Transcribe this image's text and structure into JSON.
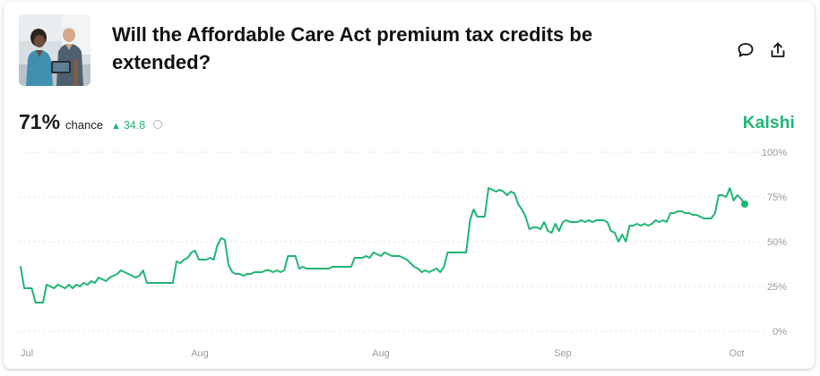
{
  "market": {
    "title": "Will the Affordable Care Act premium tax credits be extended?",
    "probability": "71%",
    "chance_label": "chance",
    "change": "34.8",
    "brand": "Kalshi"
  },
  "colors": {
    "accent": "#1fb574",
    "gridline": "#d9d9d9",
    "axis_text": "#9a9a9a"
  },
  "icons": {
    "comment": "comment-bubble-icon",
    "share": "share-icon",
    "info": "info-icon",
    "change": "triangle-up-icon"
  },
  "chart_data": {
    "type": "line",
    "ylim": [
      0,
      100
    ],
    "y_ticks": [
      "100%",
      "75%",
      "50%",
      "25%",
      "0%"
    ],
    "x_ticks": [
      "Jul",
      "Aug",
      "Aug",
      "Sep",
      "Oct"
    ],
    "grid": true,
    "series": [
      {
        "values": [
          36,
          24,
          24,
          24,
          16,
          16,
          16,
          26,
          25,
          24,
          26,
          25,
          24,
          26,
          24,
          26,
          25,
          27,
          26,
          28,
          27,
          30,
          29,
          28,
          30,
          31,
          32,
          34,
          33,
          32,
          31,
          30,
          31,
          34,
          27,
          27,
          27,
          27,
          27,
          27,
          27,
          27,
          39,
          38,
          40,
          41,
          44,
          45,
          40,
          40,
          40,
          41,
          40,
          48,
          52,
          51,
          37,
          33,
          32,
          32,
          31,
          32,
          32,
          33,
          33,
          33,
          34,
          34,
          33,
          34,
          33,
          34,
          42,
          42,
          42,
          35,
          36,
          35,
          35,
          35,
          35,
          35,
          35,
          35,
          36,
          36,
          36,
          36,
          36,
          36,
          41,
          41,
          41,
          42,
          41,
          44,
          43,
          42,
          44,
          43,
          42,
          42,
          42,
          41,
          40,
          38,
          36,
          35,
          33,
          34,
          33,
          34,
          35,
          33,
          36,
          44,
          44,
          44,
          44,
          44,
          44,
          62,
          68,
          64,
          64,
          64,
          80,
          79,
          78,
          79,
          78,
          76,
          78,
          77,
          71,
          68,
          64,
          57,
          58,
          58,
          57,
          61,
          56,
          55,
          60,
          56,
          61,
          62,
          61,
          61,
          61,
          62,
          61,
          62,
          61,
          62,
          62,
          62,
          61,
          56,
          55,
          50,
          54,
          50,
          59,
          59,
          60,
          59,
          60,
          59,
          60,
          62,
          61,
          62,
          61,
          66,
          66,
          67,
          67,
          66,
          66,
          65,
          65,
          64,
          63,
          63,
          63,
          66,
          76,
          76,
          75,
          80,
          73,
          76,
          74,
          71
        ]
      }
    ]
  }
}
